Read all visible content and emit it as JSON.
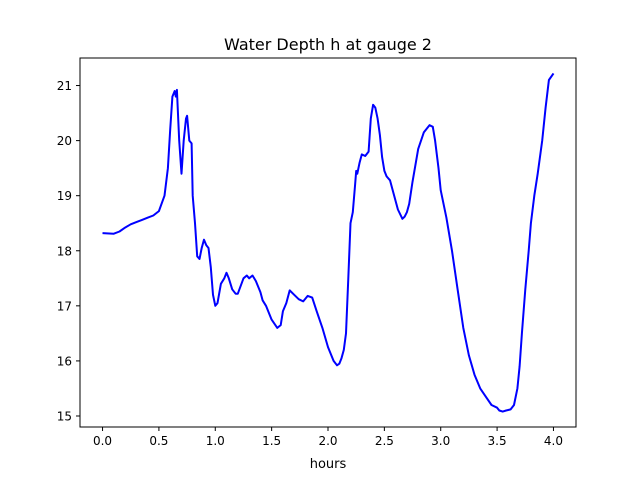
{
  "chart_data": {
    "type": "line",
    "title": "Water Depth h at gauge 2",
    "xlabel": "hours",
    "ylabel": "",
    "xlim": [
      -0.2,
      4.2
    ],
    "ylim": [
      14.8,
      21.5
    ],
    "xticks": [
      0.0,
      0.5,
      1.0,
      1.5,
      2.0,
      2.5,
      3.0,
      3.5,
      4.0
    ],
    "xtick_labels": [
      "0.0",
      "0.5",
      "1.0",
      "1.5",
      "2.0",
      "2.5",
      "3.0",
      "3.5",
      "4.0"
    ],
    "yticks": [
      15,
      16,
      17,
      18,
      19,
      20,
      21
    ],
    "ytick_labels": [
      "15",
      "16",
      "17",
      "18",
      "19",
      "20",
      "21"
    ],
    "grid": false,
    "series": [
      {
        "color": "#0000ff",
        "x": [
          0.0,
          0.1,
          0.15,
          0.2,
          0.25,
          0.3,
          0.35,
          0.4,
          0.45,
          0.5,
          0.55,
          0.58,
          0.6,
          0.62,
          0.64,
          0.65,
          0.66,
          0.68,
          0.7,
          0.72,
          0.74,
          0.75,
          0.77,
          0.79,
          0.8,
          0.82,
          0.84,
          0.86,
          0.88,
          0.9,
          0.92,
          0.94,
          0.96,
          0.98,
          1.0,
          1.02,
          1.05,
          1.08,
          1.1,
          1.12,
          1.15,
          1.18,
          1.2,
          1.25,
          1.28,
          1.3,
          1.33,
          1.36,
          1.4,
          1.42,
          1.45,
          1.5,
          1.55,
          1.58,
          1.6,
          1.63,
          1.66,
          1.7,
          1.74,
          1.78,
          1.82,
          1.86,
          1.9,
          1.95,
          2.0,
          2.05,
          2.08,
          2.1,
          2.12,
          2.14,
          2.16,
          2.18,
          2.2,
          2.22,
          2.24,
          2.25,
          2.26,
          2.28,
          2.3,
          2.33,
          2.36,
          2.38,
          2.4,
          2.42,
          2.44,
          2.46,
          2.48,
          2.5,
          2.52,
          2.55,
          2.58,
          2.62,
          2.66,
          2.68,
          2.7,
          2.72,
          2.75,
          2.8,
          2.85,
          2.9,
          2.93,
          2.95,
          2.98,
          3.0,
          3.05,
          3.1,
          3.15,
          3.2,
          3.25,
          3.3,
          3.35,
          3.4,
          3.45,
          3.5,
          3.52,
          3.55,
          3.58,
          3.62,
          3.65,
          3.68,
          3.7,
          3.72,
          3.75,
          3.78,
          3.8,
          3.83,
          3.86,
          3.9,
          3.93,
          3.96,
          4.0
        ],
        "y": [
          18.32,
          18.31,
          18.35,
          18.42,
          18.48,
          18.52,
          18.56,
          18.6,
          18.64,
          18.72,
          19.0,
          19.5,
          20.2,
          20.8,
          20.9,
          20.8,
          20.92,
          20.0,
          19.4,
          20.0,
          20.4,
          20.45,
          20.0,
          19.95,
          19.0,
          18.5,
          17.9,
          17.85,
          18.05,
          18.2,
          18.1,
          18.05,
          17.7,
          17.2,
          17.0,
          17.05,
          17.4,
          17.5,
          17.6,
          17.5,
          17.3,
          17.22,
          17.22,
          17.5,
          17.55,
          17.5,
          17.55,
          17.45,
          17.25,
          17.1,
          17.0,
          16.75,
          16.6,
          16.65,
          16.9,
          17.05,
          17.28,
          17.2,
          17.12,
          17.08,
          17.18,
          17.15,
          16.9,
          16.6,
          16.25,
          16.0,
          15.92,
          15.95,
          16.05,
          16.2,
          16.5,
          17.5,
          18.5,
          18.7,
          19.2,
          19.45,
          19.4,
          19.6,
          19.75,
          19.72,
          19.8,
          20.4,
          20.65,
          20.6,
          20.4,
          20.1,
          19.7,
          19.45,
          19.35,
          19.28,
          19.05,
          18.75,
          18.58,
          18.62,
          18.7,
          18.85,
          19.25,
          19.85,
          20.15,
          20.28,
          20.25,
          20.0,
          19.5,
          19.1,
          18.6,
          18.0,
          17.3,
          16.6,
          16.1,
          15.75,
          15.5,
          15.35,
          15.2,
          15.15,
          15.1,
          15.08,
          15.1,
          15.12,
          15.2,
          15.5,
          15.9,
          16.5,
          17.3,
          18.0,
          18.5,
          19.0,
          19.4,
          20.0,
          20.6,
          21.1,
          21.22
        ]
      }
    ]
  }
}
